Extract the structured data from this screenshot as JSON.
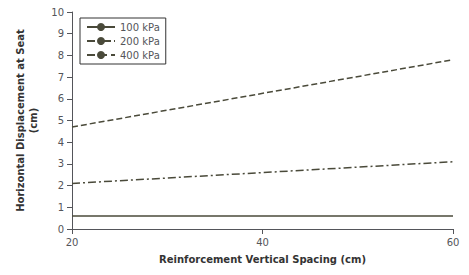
{
  "chart_data": {
    "type": "line",
    "xlabel": "Reinforcement Vertical Spacing (cm)",
    "ylabel": "Horizontal Displacement at Seat\n(cm)",
    "x": [
      20,
      60
    ],
    "series": [
      {
        "name": "100 kPa",
        "values": [
          0.6,
          0.6
        ],
        "color": "#4a4a3a",
        "line_style": "solid"
      },
      {
        "name": "200 kPa",
        "values": [
          2.1,
          3.1
        ],
        "color": "#4a4a3a",
        "line_style": "dashdot"
      },
      {
        "name": "400 kPa",
        "values": [
          4.7,
          7.8
        ],
        "color": "#4a4a3a",
        "line_style": "dashed"
      }
    ],
    "xlim": [
      20,
      60
    ],
    "ylim": [
      0,
      10
    ],
    "xticks": [
      20,
      40,
      60
    ],
    "yticks": [
      0,
      1,
      2,
      3,
      4,
      5,
      6,
      7,
      8,
      9,
      10
    ],
    "legend": "upper left",
    "grid": false
  }
}
